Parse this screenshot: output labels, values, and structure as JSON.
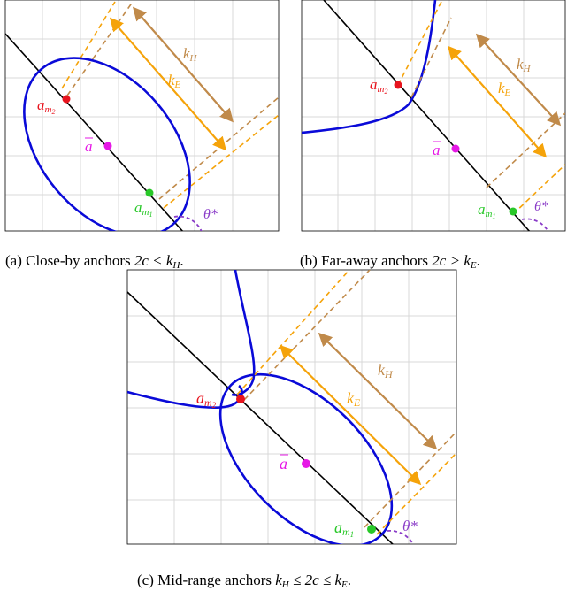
{
  "colors": {
    "ellipse": "#0a0ad8",
    "line": "#000000",
    "am2": "#e8141e",
    "am1": "#28c828",
    "abar": "#e619e6",
    "kH": "#c08a4a",
    "kE": "#f5a30a",
    "theta": "#8a3cc8",
    "grid": "#d9d9d9"
  },
  "panel_a": {
    "caption_prefix": "(a) Close-by anchors ",
    "caption_math": "2c < k",
    "caption_sub": "H",
    "caption_end": ".",
    "label_am2": "a",
    "label_am2_sub": "m",
    "label_am2_subsub": "2",
    "label_am1": "a",
    "label_am1_sub": "m",
    "label_am1_subsub": "1",
    "label_abar": "a",
    "label_kH": "k",
    "label_kH_sub": "H",
    "label_kE": "k",
    "label_kE_sub": "E",
    "label_theta": "θ*"
  },
  "panel_b": {
    "caption_prefix": "(b) Far-away anchors ",
    "caption_math": "2c > k",
    "caption_sub": "E",
    "caption_end": ".",
    "label_am2": "a",
    "label_am2_sub": "m",
    "label_am2_subsub": "2",
    "label_am1": "a",
    "label_am1_sub": "m",
    "label_am1_subsub": "1",
    "label_abar": "a",
    "label_kH": "k",
    "label_kH_sub": "H",
    "label_kE": "k",
    "label_kE_sub": "E",
    "label_theta": "θ*"
  },
  "panel_c": {
    "caption_prefix": "(c) Mid-range anchors ",
    "caption_math": "k",
    "caption_sub1": "H",
    "caption_mid": " ≤ 2c ≤ k",
    "caption_sub2": "E",
    "caption_end": ".",
    "label_am2": "a",
    "label_am2_sub": "m",
    "label_am2_subsub": "2",
    "label_am1": "a",
    "label_am1_sub": "m",
    "label_am1_subsub": "1",
    "label_abar": "a",
    "label_kH": "k",
    "label_kH_sub": "H",
    "label_kE": "k",
    "label_kE_sub": "E",
    "label_theta": "θ*"
  }
}
